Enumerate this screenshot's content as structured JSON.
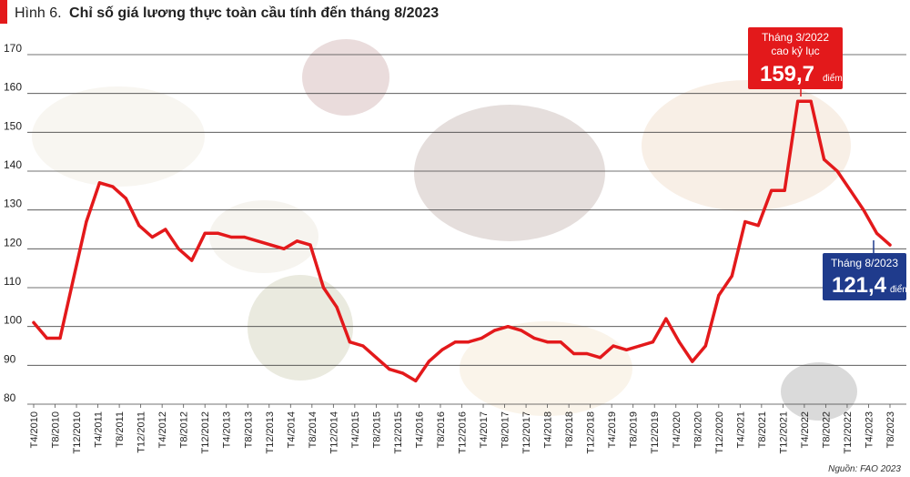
{
  "header": {
    "figure_label": "Hình 6.",
    "title": "Chỉ số giá lương thực toàn cầu tính đến tháng 8/2023"
  },
  "source": "Nguồn: FAO 2023",
  "colors": {
    "accent": "#e3191b",
    "callout_red": "#e3191b",
    "callout_blue": "#1f3b8c",
    "grid": "#444444",
    "text": "#222222"
  },
  "annotations": {
    "peak": {
      "line1": "Tháng 3/2022",
      "line2": "cao kỷ lục",
      "value": "159,7",
      "unit": "điểm"
    },
    "latest": {
      "line1": "Tháng 8/2023",
      "value": "121,4",
      "unit": "điểm"
    }
  },
  "chart_data": {
    "type": "line",
    "title": "Chỉ số giá lương thực toàn cầu tính đến tháng 8/2023",
    "xlabel": "",
    "ylabel": "",
    "ylim": [
      80,
      170
    ],
    "yticks": [
      80,
      90,
      100,
      110,
      120,
      130,
      140,
      150,
      160,
      170
    ],
    "grid": true,
    "x_ticks": [
      "T4/2010",
      "T8/2010",
      "T12/2010",
      "T4/2011",
      "T8/2011",
      "T12/2011",
      "T4/2012",
      "T8/2012",
      "T12/2012",
      "T4/2013",
      "T8/2013",
      "T12/2013",
      "T4/2014",
      "T8/2014",
      "T12/2014",
      "T4/2015",
      "T8/2015",
      "T12/2015",
      "T4/2016",
      "T8/2016",
      "T12/2016",
      "T4/2017",
      "T8/2017",
      "T12/2017",
      "T4/2018",
      "T8/2018",
      "T12/2018",
      "T4/2019",
      "T8/2019",
      "T12/2019",
      "T4/2020",
      "T8/2020",
      "T12/2020",
      "T4/2021",
      "T8/2021",
      "T12/2021",
      "T4/2022",
      "T8/2022",
      "T12/2022",
      "T4/2023",
      "T8/2023"
    ],
    "series": [
      {
        "name": "Chỉ số giá lương thực",
        "values": [
          101,
          97,
          97,
          112,
          127,
          137,
          136,
          133,
          126,
          123,
          125,
          120,
          117,
          124,
          124,
          123,
          123,
          122,
          121,
          120,
          122,
          121,
          110,
          105,
          96,
          95,
          92,
          89,
          88,
          86,
          91,
          94,
          96,
          96,
          97,
          99,
          100,
          99,
          97,
          96,
          96,
          93,
          93,
          92,
          95,
          94,
          95,
          96,
          102,
          96,
          91,
          95,
          108,
          113,
          127,
          126,
          135,
          135,
          158,
          158,
          143,
          140,
          135,
          130,
          124,
          121
        ]
      }
    ]
  }
}
